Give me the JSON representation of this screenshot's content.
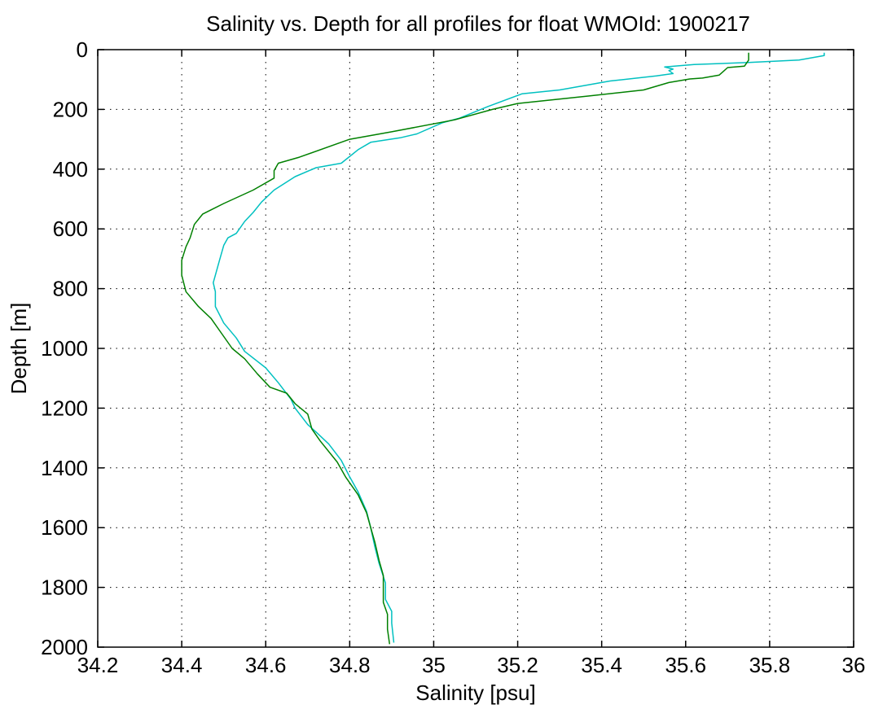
{
  "chart_data": {
    "type": "line",
    "title": "Salinity vs. Depth for all profiles for float WMOId: 1900217",
    "xlabel": "Salinity [psu]",
    "ylabel": "Depth [m]",
    "xlim": [
      34.2,
      36
    ],
    "ylim": [
      0,
      2000
    ],
    "y_reversed": true,
    "grid": true,
    "xticks": [
      "34.2",
      "34.4",
      "34.6",
      "34.8",
      "35",
      "35.2",
      "35.4",
      "35.6",
      "35.8",
      "36"
    ],
    "yticks": [
      "0",
      "200",
      "400",
      "600",
      "800",
      "1000",
      "1200",
      "1400",
      "1600",
      "1800",
      "2000"
    ],
    "series": [
      {
        "color": "#00c0c0",
        "points": [
          [
            35.93,
            10
          ],
          [
            35.93,
            20
          ],
          [
            35.87,
            35
          ],
          [
            35.75,
            43
          ],
          [
            35.62,
            50
          ],
          [
            35.55,
            58
          ],
          [
            35.57,
            65
          ],
          [
            35.56,
            70
          ],
          [
            35.57,
            80
          ],
          [
            35.53,
            88
          ],
          [
            35.42,
            105
          ],
          [
            35.3,
            135
          ],
          [
            35.21,
            148
          ],
          [
            35.13,
            190
          ],
          [
            35.06,
            230
          ],
          [
            35.02,
            245
          ],
          [
            34.96,
            282
          ],
          [
            34.92,
            295
          ],
          [
            34.85,
            310
          ],
          [
            34.82,
            335
          ],
          [
            34.78,
            380
          ],
          [
            34.72,
            395
          ],
          [
            34.67,
            425
          ],
          [
            34.62,
            470
          ],
          [
            34.59,
            510
          ],
          [
            34.57,
            545
          ],
          [
            34.55,
            575
          ],
          [
            34.53,
            615
          ],
          [
            34.51,
            630
          ],
          [
            34.5,
            655
          ],
          [
            34.49,
            705
          ],
          [
            34.48,
            755
          ],
          [
            34.475,
            780
          ],
          [
            34.48,
            810
          ],
          [
            34.48,
            860
          ],
          [
            34.5,
            915
          ],
          [
            34.53,
            965
          ],
          [
            34.55,
            1010
          ],
          [
            34.6,
            1065
          ],
          [
            34.63,
            1115
          ],
          [
            34.66,
            1170
          ],
          [
            34.67,
            1200
          ],
          [
            34.7,
            1255
          ],
          [
            34.72,
            1280
          ],
          [
            34.75,
            1320
          ],
          [
            34.78,
            1375
          ],
          [
            34.8,
            1430
          ],
          [
            34.82,
            1480
          ],
          [
            34.84,
            1545
          ],
          [
            34.85,
            1600
          ],
          [
            34.86,
            1665
          ],
          [
            34.87,
            1720
          ],
          [
            34.885,
            1785
          ],
          [
            34.885,
            1840
          ],
          [
            34.9,
            1880
          ],
          [
            34.9,
            1920
          ],
          [
            34.905,
            1985
          ]
        ]
      },
      {
        "color": "#008000",
        "points": [
          [
            35.75,
            10
          ],
          [
            35.75,
            35
          ],
          [
            35.74,
            55
          ],
          [
            35.7,
            60
          ],
          [
            35.68,
            85
          ],
          [
            35.64,
            95
          ],
          [
            35.61,
            98
          ],
          [
            35.56,
            110
          ],
          [
            35.5,
            135
          ],
          [
            35.37,
            155
          ],
          [
            35.2,
            180
          ],
          [
            35.14,
            200
          ],
          [
            35.05,
            235
          ],
          [
            34.9,
            275
          ],
          [
            34.8,
            300
          ],
          [
            34.68,
            360
          ],
          [
            34.63,
            380
          ],
          [
            34.62,
            405
          ],
          [
            34.62,
            430
          ],
          [
            34.57,
            470
          ],
          [
            34.5,
            515
          ],
          [
            34.45,
            550
          ],
          [
            34.43,
            585
          ],
          [
            34.42,
            630
          ],
          [
            34.41,
            660
          ],
          [
            34.4,
            705
          ],
          [
            34.4,
            755
          ],
          [
            34.41,
            810
          ],
          [
            34.44,
            860
          ],
          [
            34.47,
            900
          ],
          [
            34.49,
            940
          ],
          [
            34.52,
            1000
          ],
          [
            34.55,
            1035
          ],
          [
            34.58,
            1085
          ],
          [
            34.61,
            1130
          ],
          [
            34.65,
            1150
          ],
          [
            34.67,
            1185
          ],
          [
            34.7,
            1220
          ],
          [
            34.71,
            1270
          ],
          [
            34.73,
            1310
          ],
          [
            34.77,
            1380
          ],
          [
            34.79,
            1430
          ],
          [
            34.82,
            1490
          ],
          [
            34.84,
            1550
          ],
          [
            34.85,
            1600
          ],
          [
            34.86,
            1650
          ],
          [
            34.87,
            1710
          ],
          [
            34.88,
            1760
          ],
          [
            34.88,
            1800
          ],
          [
            34.88,
            1850
          ],
          [
            34.89,
            1890
          ],
          [
            34.89,
            1940
          ],
          [
            34.895,
            1990
          ]
        ]
      }
    ]
  }
}
